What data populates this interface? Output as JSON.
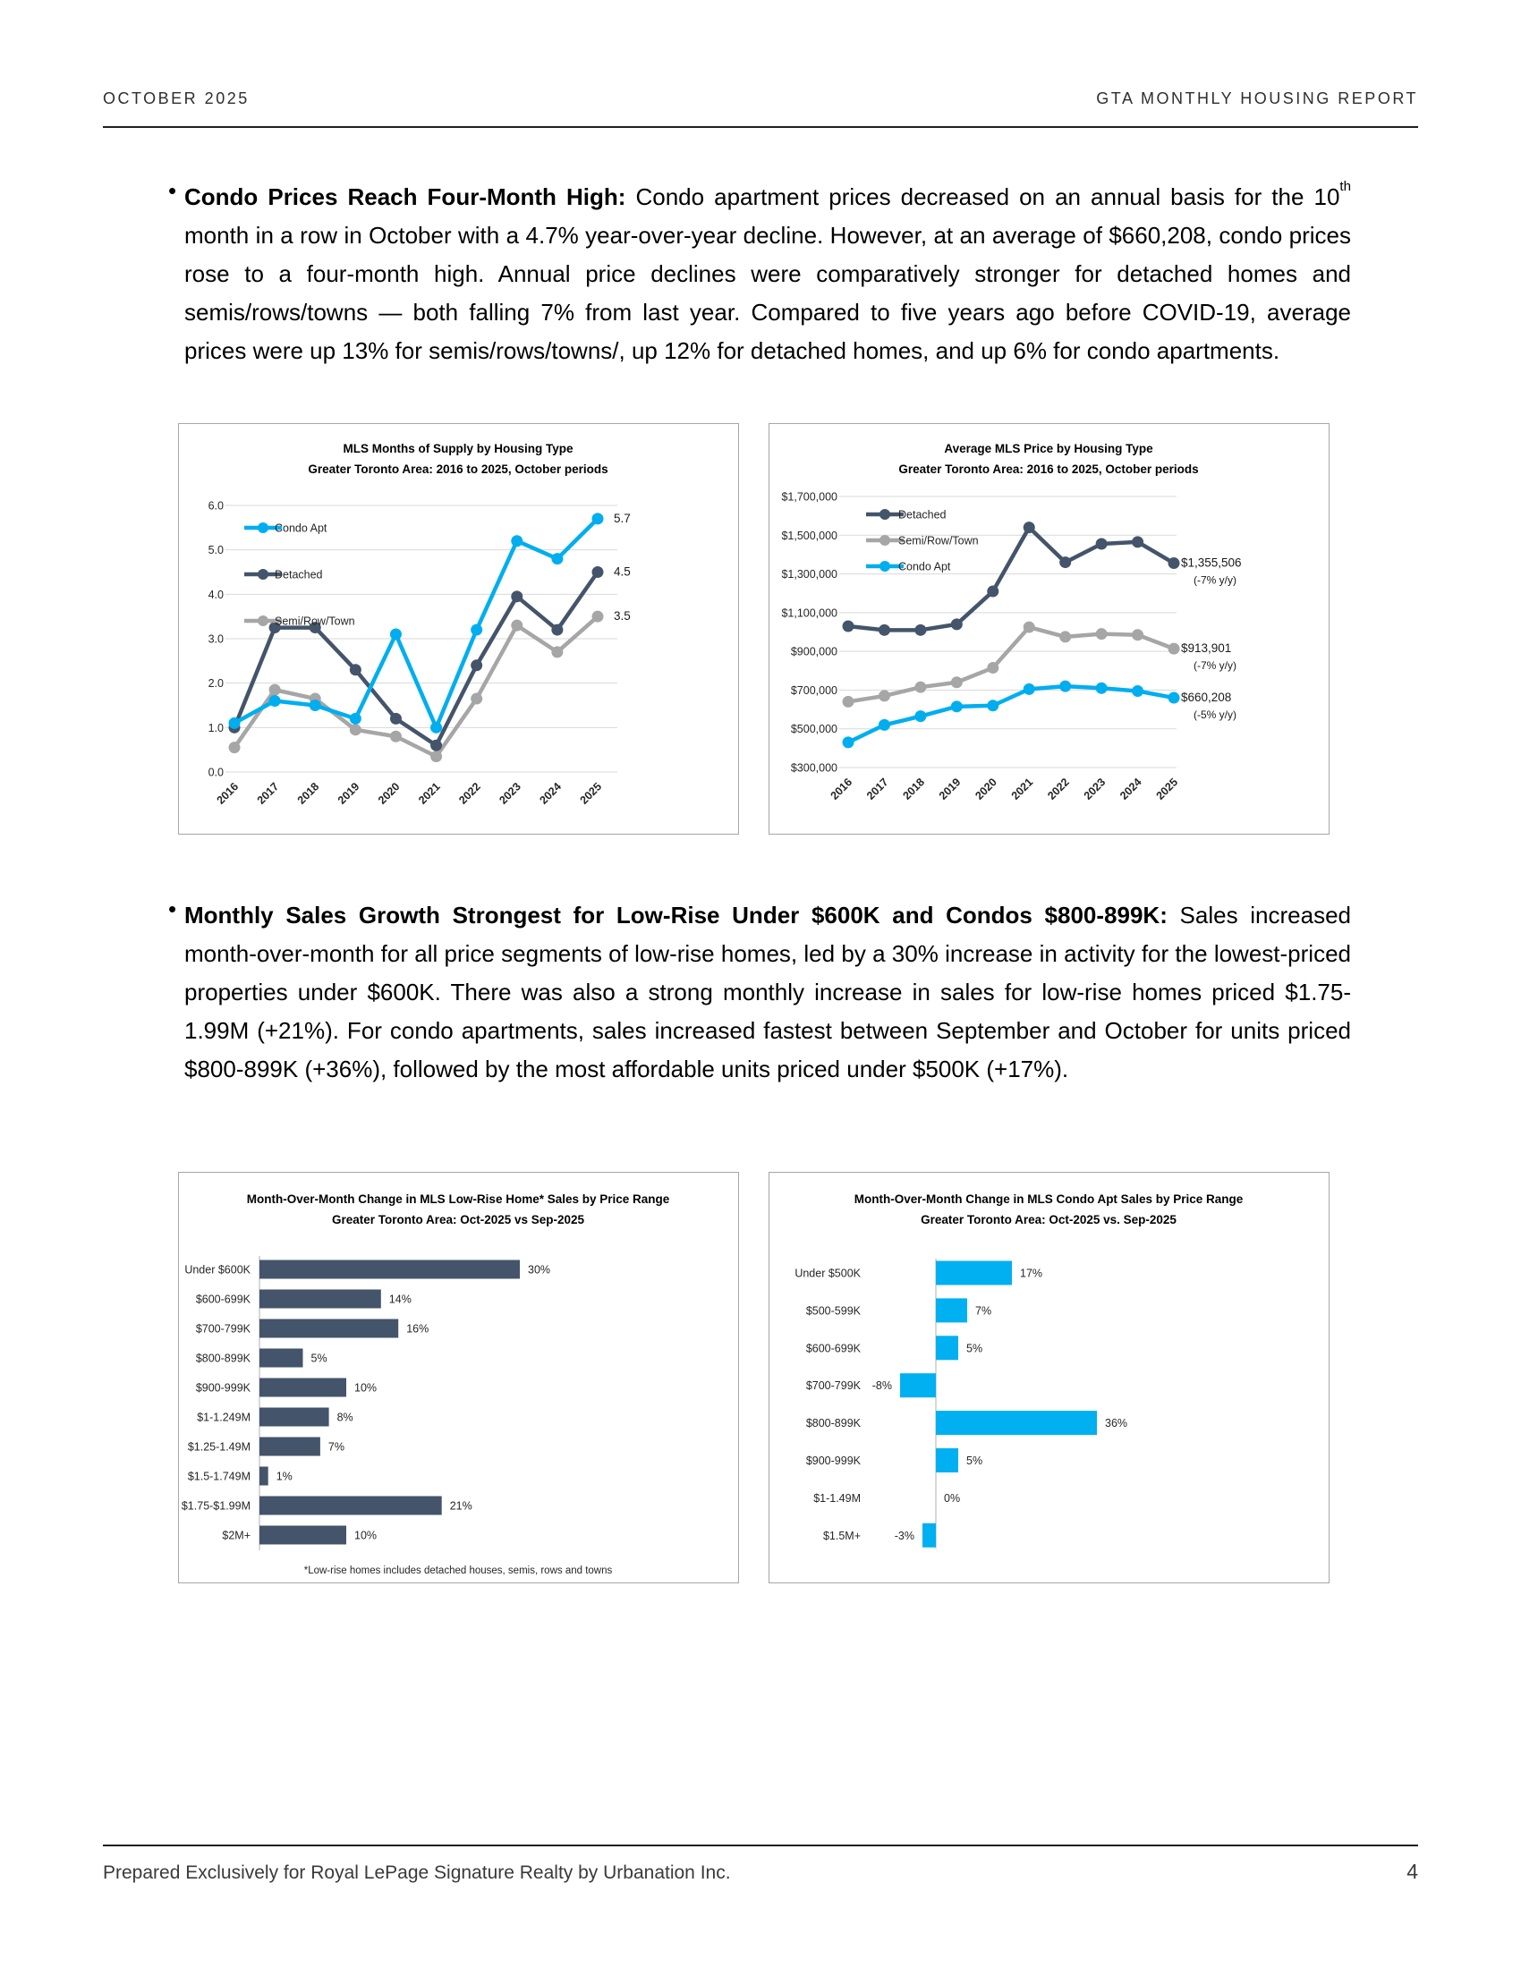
{
  "header": {
    "left": "OCTOBER 2025",
    "right": "GTA MONTHLY HOUSING REPORT"
  },
  "bullets": {
    "marker": "•",
    "b1": {
      "bold": "Condo Prices Reach Four-Month High:",
      "pre": " Condo apartment prices decreased on an annual basis for the 10",
      "sup": "th",
      "post": " month in a row in October with a 4.7% year-over-year decline. However, at an average of $660,208, condo prices rose to a four-month high. Annual price declines were comparatively stronger for detached homes and semis/rows/towns — both falling 7% from last year. Compared to five years ago before COVID-19, average prices were up 13% for semis/rows/towns/, up 12% for detached homes, and up 6% for condo apartments."
    },
    "b2": {
      "bold": "Monthly Sales Growth Strongest for Low-Rise Under $600K and Condos $800-899K:",
      "body": " Sales increased month-over-month for all price segments of low-rise homes, led by a 30% increase in activity for the lowest-priced properties under $600K. There was also a strong monthly increase in sales for low-rise homes priced $1.75-1.99M (+21%). For condo apartments, sales increased fastest between September and October for units priced $800-899K (+36%), followed by the most affordable units priced under $500K (+17%)."
    }
  },
  "footer": {
    "text": "Prepared Exclusively for Royal LePage Signature Realty by Urbanation Inc.",
    "page_number": "4"
  },
  "colors": {
    "navy": "#44546A",
    "gray": "#A6A6A6",
    "blue": "#00AEEF",
    "bar_blue": "#00B0F0",
    "gridline": "#D9D9D9"
  },
  "chart_data": [
    {
      "type": "line",
      "title": [
        "MLS Months of Supply by Housing Type",
        "Greater Toronto Area: 2016 to 2025, October periods"
      ],
      "x": [
        "2016",
        "2017",
        "2018",
        "2019",
        "2020",
        "2021",
        "2022",
        "2023",
        "2024",
        "2025"
      ],
      "ylim": [
        0,
        6
      ],
      "grid": true,
      "legend_position": "top-left-inside",
      "yticks": [
        {
          "v": 0,
          "label": "0.0"
        },
        {
          "v": 1,
          "label": "1.0"
        },
        {
          "v": 2,
          "label": "2.0"
        },
        {
          "v": 3,
          "label": "3.0"
        },
        {
          "v": 4,
          "label": "4.0"
        },
        {
          "v": 5,
          "label": "5.0"
        },
        {
          "v": 6,
          "label": "6.0"
        }
      ],
      "series": [
        {
          "name": "Condo Apt",
          "color": "#00AEEF",
          "values": [
            1.1,
            1.6,
            1.5,
            1.2,
            3.1,
            1.0,
            3.2,
            5.2,
            4.8,
            5.7
          ],
          "end_label": [
            "5.7"
          ]
        },
        {
          "name": "Detached",
          "color": "#44546A",
          "values": [
            1.0,
            3.25,
            3.25,
            2.3,
            1.2,
            0.6,
            2.4,
            3.95,
            3.2,
            4.5
          ],
          "end_label": [
            "4.5"
          ]
        },
        {
          "name": "Semi/Row/Town",
          "color": "#A6A6A6",
          "values": [
            0.55,
            1.85,
            1.65,
            0.95,
            0.8,
            0.35,
            1.65,
            3.3,
            2.7,
            3.5
          ],
          "end_label": [
            "3.5"
          ]
        }
      ]
    },
    {
      "type": "line",
      "title": [
        "Average MLS Price by Housing Type",
        "Greater Toronto Area: 2016 to 2025, October periods"
      ],
      "x": [
        "2016",
        "2017",
        "2018",
        "2019",
        "2020",
        "2021",
        "2022",
        "2023",
        "2024",
        "2025"
      ],
      "ylim": [
        300000,
        1700000
      ],
      "grid": true,
      "legend_position": "top-left-inside",
      "yticks": [
        {
          "v": 300000,
          "label": "$300,000"
        },
        {
          "v": 500000,
          "label": "$500,000"
        },
        {
          "v": 700000,
          "label": "$700,000"
        },
        {
          "v": 900000,
          "label": "$900,000"
        },
        {
          "v": 1100000,
          "label": "$1,100,000"
        },
        {
          "v": 1300000,
          "label": "$1,300,000"
        },
        {
          "v": 1500000,
          "label": "$1,500,000"
        },
        {
          "v": 1700000,
          "label": "$1,700,000"
        }
      ],
      "series": [
        {
          "name": "Detached",
          "color": "#44546A",
          "values": [
            1030000,
            1010000,
            1010000,
            1040000,
            1210000,
            1540000,
            1360000,
            1455000,
            1465000,
            1355506
          ],
          "end_label": [
            "$1,355,506",
            "(-7% y/y)"
          ]
        },
        {
          "name": "Semi/Row/Town",
          "color": "#A6A6A6",
          "values": [
            640000,
            670000,
            715000,
            740000,
            815000,
            1025000,
            975000,
            990000,
            985000,
            913901
          ],
          "end_label": [
            "$913,901",
            "(-7% y/y)"
          ]
        },
        {
          "name": "Condo Apt",
          "color": "#00AEEF",
          "values": [
            430000,
            520000,
            565000,
            615000,
            620000,
            705000,
            720000,
            710000,
            695000,
            660208
          ],
          "end_label": [
            "$660,208",
            "(-5% y/y)"
          ]
        }
      ]
    },
    {
      "type": "bar",
      "title": [
        "Month-Over-Month Change in MLS Low-Rise Home* Sales by Price Range",
        "Greater Toronto Area: Oct-2025 vs Sep-2025"
      ],
      "categories": [
        "Under $600K",
        "$600-699K",
        "$700-799K",
        "$800-899K",
        "$900-999K",
        "$1-1.249M",
        "$1.25-1.49M",
        "$1.5-1.749M",
        "$1.75-$1.99M",
        "$2M+"
      ],
      "values": [
        30,
        14,
        16,
        5,
        10,
        8,
        7,
        1,
        21,
        10
      ],
      "labels": [
        "30%",
        "14%",
        "16%",
        "5%",
        "10%",
        "8%",
        "7%",
        "1%",
        "21%",
        "10%"
      ],
      "color": "#44546A",
      "footnote": "*Low-rise homes includes detached houses, semis, rows and towns"
    },
    {
      "type": "bar",
      "title": [
        "Month-Over-Month Change in MLS Condo Apt Sales by Price Range",
        "Greater Toronto Area: Oct-2025 vs. Sep-2025"
      ],
      "categories": [
        "Under $500K",
        "$500-599K",
        "$600-699K",
        "$700-799K",
        "$800-899K",
        "$900-999K",
        "$1-1.49M",
        "$1.5M+"
      ],
      "values": [
        17,
        7,
        5,
        -8,
        36,
        5,
        0,
        -3
      ],
      "labels": [
        "17%",
        "7%",
        "5%",
        "-8%",
        "36%",
        "5%",
        "0%",
        "-3%"
      ],
      "color": "#00B0F0"
    }
  ]
}
